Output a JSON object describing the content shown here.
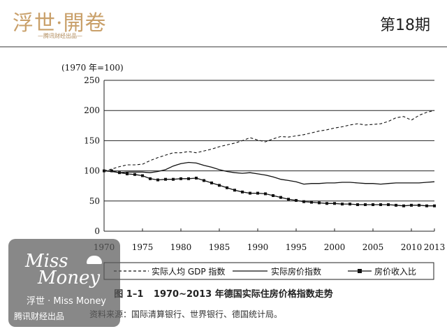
{
  "header": {
    "logo_text": "浮世·開卷",
    "logo_subtitle": "—腾讯财经出品—",
    "issue_label": "第18期"
  },
  "chart_data": {
    "type": "line",
    "unit_label": "(1970 年=100)",
    "x": [
      1970,
      1971,
      1972,
      1973,
      1974,
      1975,
      1976,
      1977,
      1978,
      1979,
      1980,
      1981,
      1982,
      1983,
      1984,
      1985,
      1986,
      1987,
      1988,
      1989,
      1990,
      1991,
      1992,
      1993,
      1994,
      1995,
      1996,
      1997,
      1998,
      1999,
      2000,
      2001,
      2002,
      2003,
      2004,
      2005,
      2006,
      2007,
      2008,
      2009,
      2010,
      2011,
      2012,
      2013
    ],
    "xlim": [
      1970,
      2013
    ],
    "ylim": [
      0,
      250
    ],
    "x_ticks": [
      1970,
      1975,
      1980,
      1985,
      1990,
      1995,
      2000,
      2005,
      2010,
      2013
    ],
    "y_ticks": [
      0,
      50,
      100,
      150,
      200,
      250
    ],
    "grid": "horizontal",
    "series": [
      {
        "name": "实际人均 GDP 指数",
        "style": "dashed",
        "values": [
          100,
          103,
          107,
          110,
          110,
          111,
          117,
          122,
          126,
          130,
          130,
          132,
          130,
          133,
          136,
          140,
          143,
          146,
          150,
          155,
          151,
          148,
          153,
          157,
          156,
          158,
          160,
          163,
          166,
          168,
          171,
          173,
          176,
          178,
          176,
          177,
          178,
          182,
          188,
          190,
          184,
          192,
          197,
          200
        ]
      },
      {
        "name": "实际房价指数",
        "style": "solid",
        "values": [
          100,
          99,
          97,
          98,
          98,
          98,
          97,
          99,
          102,
          108,
          112,
          114,
          113,
          109,
          106,
          102,
          99,
          97,
          96,
          97,
          95,
          93,
          90,
          86,
          84,
          82,
          78,
          79,
          79,
          80,
          80,
          81,
          81,
          80,
          79,
          79,
          78,
          79,
          80,
          80,
          80,
          80,
          81,
          82
        ]
      },
      {
        "name": "房价收入比",
        "style": "solid-square-markers",
        "values": [
          100,
          100,
          97,
          95,
          94,
          92,
          87,
          85,
          86,
          86,
          87,
          87,
          88,
          84,
          80,
          76,
          72,
          68,
          65,
          63,
          63,
          62,
          59,
          56,
          53,
          51,
          49,
          48,
          47,
          46,
          46,
          45,
          45,
          44,
          44,
          44,
          44,
          44,
          43,
          42,
          43,
          43,
          42,
          42
        ]
      }
    ],
    "caption_label": "图 1–1",
    "caption_title": "1970~2013 年德国实际住房价格指数走势",
    "source": "资料来源：国际清算银行、世界银行、德国统计局。"
  },
  "watermark": {
    "script_line1": "Miss",
    "script_line2": "Money",
    "line1": "浮世 · Miss Money",
    "line2": "腾讯财经出品"
  }
}
